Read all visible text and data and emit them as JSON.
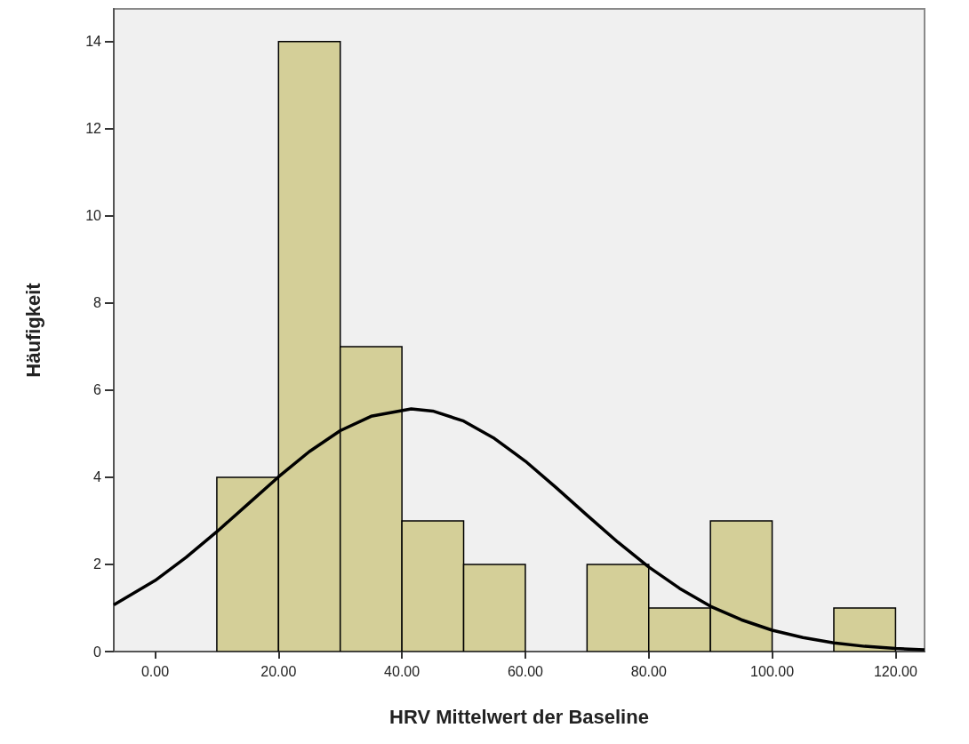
{
  "chart_data": {
    "type": "histogram",
    "xlabel": "HRV Mittelwert der Baseline",
    "ylabel": "Häufigkeit",
    "bins": [
      10,
      20,
      30,
      40,
      50,
      60,
      70,
      80,
      90,
      100,
      110,
      120
    ],
    "series": [
      {
        "color": "#d4cf98",
        "values": [
          4,
          14,
          7,
          3,
          2,
          0,
          2,
          1,
          3,
          0,
          1
        ]
      },
      {
        "type": "line",
        "color": "#000000",
        "marker": "none",
        "x": [
          -6.7,
          0,
          5,
          10,
          15,
          20,
          25,
          30,
          35,
          41.5,
          45,
          50,
          55,
          60,
          65,
          70,
          75,
          80,
          85,
          90,
          95,
          100,
          105,
          110,
          115,
          120,
          124.7
        ],
        "values": [
          1.07,
          1.63,
          2.16,
          2.75,
          3.38,
          4.01,
          4.59,
          5.07,
          5.4,
          5.57,
          5.52,
          5.29,
          4.89,
          4.37,
          3.76,
          3.13,
          2.51,
          1.94,
          1.45,
          1.04,
          0.73,
          0.49,
          0.32,
          0.2,
          0.12,
          0.07,
          0.04
        ]
      }
    ],
    "xlim": [
      -6.7,
      124.7
    ],
    "xticks": [
      {
        "value": 0,
        "label": "0.00"
      },
      {
        "value": 20,
        "label": "20.00"
      },
      {
        "value": 40,
        "label": "40.00"
      },
      {
        "value": 60,
        "label": "60.00"
      },
      {
        "value": 80,
        "label": "80.00"
      },
      {
        "value": 100,
        "label": "100.00"
      },
      {
        "value": 120,
        "label": "120.00"
      }
    ],
    "ylim": [
      0,
      14.75
    ],
    "yticks": [
      0,
      2,
      4,
      6,
      8,
      10,
      12,
      14
    ],
    "grid": false
  }
}
